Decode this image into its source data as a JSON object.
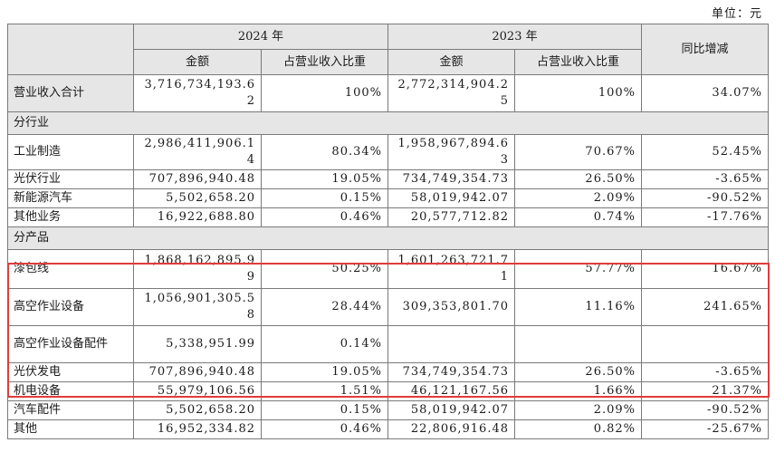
{
  "unit_label": "单位：元",
  "header": {
    "year_2024": "2024 年",
    "year_2023": "2023 年",
    "amount": "金额",
    "ratio": "占营业收入比重",
    "yoy": "同比增减"
  },
  "total": {
    "label": "营业收入合计",
    "amt_2024": "3,716,734,193.62",
    "ratio_2024": "100%",
    "amt_2023": "2,772,314,904.25",
    "ratio_2023": "100%",
    "yoy": "34.07%"
  },
  "by_industry": {
    "title": "分行业",
    "rows": [
      {
        "label": "工业制造",
        "amt_2024": "2,986,411,906.14",
        "ratio_2024": "80.34%",
        "amt_2023": "1,958,967,894.63",
        "ratio_2023": "70.67%",
        "yoy": "52.45%"
      },
      {
        "label": "光伏行业",
        "amt_2024": "707,896,940.48",
        "ratio_2024": "19.05%",
        "amt_2023": "734,749,354.73",
        "ratio_2023": "26.50%",
        "yoy": "-3.65%"
      },
      {
        "label": "新能源汽车",
        "amt_2024": "5,502,658.20",
        "ratio_2024": "0.15%",
        "amt_2023": "58,019,942.07",
        "ratio_2023": "2.09%",
        "yoy": "-90.52%"
      },
      {
        "label": "其他业务",
        "amt_2024": "16,922,688.80",
        "ratio_2024": "0.46%",
        "amt_2023": "20,577,712.82",
        "ratio_2023": "0.74%",
        "yoy": "-17.76%"
      }
    ]
  },
  "by_product": {
    "title": "分产品",
    "rows": [
      {
        "label": "漆包线",
        "amt_2024": "1,868,162,895.99",
        "ratio_2024": "50.25%",
        "amt_2023": "1,601,263,721.71",
        "ratio_2023": "57.77%",
        "yoy": "16.67%"
      },
      {
        "label": "高空作业设备",
        "amt_2024": "1,056,901,305.58",
        "ratio_2024": "28.44%",
        "amt_2023": "309,353,801.70",
        "ratio_2023": "11.16%",
        "yoy": "241.65%"
      },
      {
        "label": "高空作业设备配件",
        "amt_2024": "5,338,951.99",
        "ratio_2024": "0.14%",
        "amt_2023": "",
        "ratio_2023": "",
        "yoy": ""
      },
      {
        "label": "光伏发电",
        "amt_2024": "707,896,940.48",
        "ratio_2024": "19.05%",
        "amt_2023": "734,749,354.73",
        "ratio_2023": "26.50%",
        "yoy": "-3.65%"
      },
      {
        "label": "机电设备",
        "amt_2024": "55,979,106.56",
        "ratio_2024": "1.51%",
        "amt_2023": "46,121,167.56",
        "ratio_2023": "1.66%",
        "yoy": "21.37%"
      },
      {
        "label": "汽车配件",
        "amt_2024": "5,502,658.20",
        "ratio_2024": "0.15%",
        "amt_2023": "58,019,942.07",
        "ratio_2023": "2.09%",
        "yoy": "-90.52%"
      },
      {
        "label": "其他",
        "amt_2024": "16,952,334.82",
        "ratio_2024": "0.46%",
        "amt_2023": "22,806,916.48",
        "ratio_2023": "0.82%",
        "yoy": "-25.67%"
      }
    ]
  },
  "colors": {
    "header_bg": "#e6e6e6",
    "border": "#7a7a7a",
    "highlight": "#e03c3c"
  }
}
